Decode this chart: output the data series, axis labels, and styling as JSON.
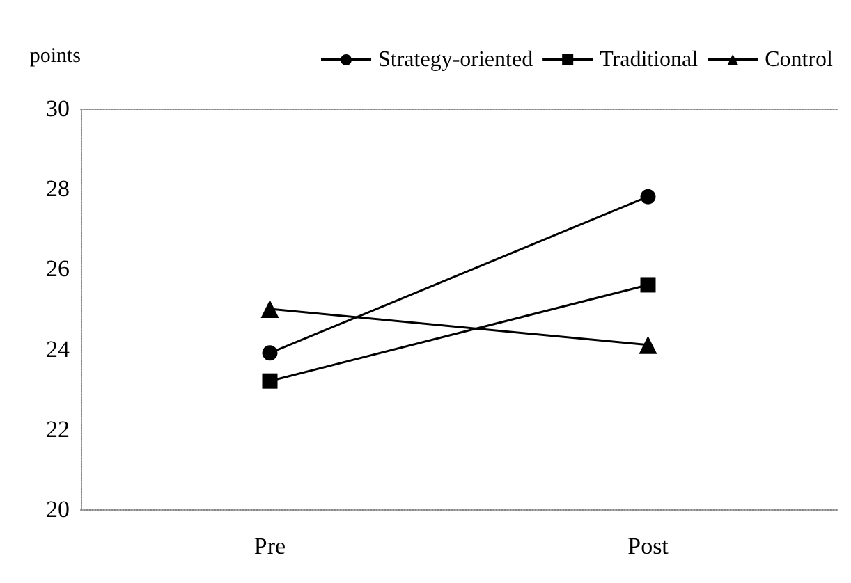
{
  "chart_data": {
    "type": "line",
    "ylabel": "points",
    "categories": [
      "Pre",
      "Post"
    ],
    "series": [
      {
        "name": "Strategy-oriented",
        "color": "#000000",
        "marker": "circle",
        "values": [
          23.9,
          27.8
        ]
      },
      {
        "name": "Traditional",
        "color": "#000000",
        "marker": "square",
        "values": [
          23.2,
          25.6
        ]
      },
      {
        "name": "Control",
        "color": "#000000",
        "marker": "triangle",
        "values": [
          25.0,
          24.1
        ]
      }
    ],
    "ylim": [
      20,
      30
    ],
    "yticks": [
      20,
      22,
      24,
      26,
      28,
      30
    ],
    "grid": false,
    "legend": "top right",
    "line_style": "solid"
  }
}
